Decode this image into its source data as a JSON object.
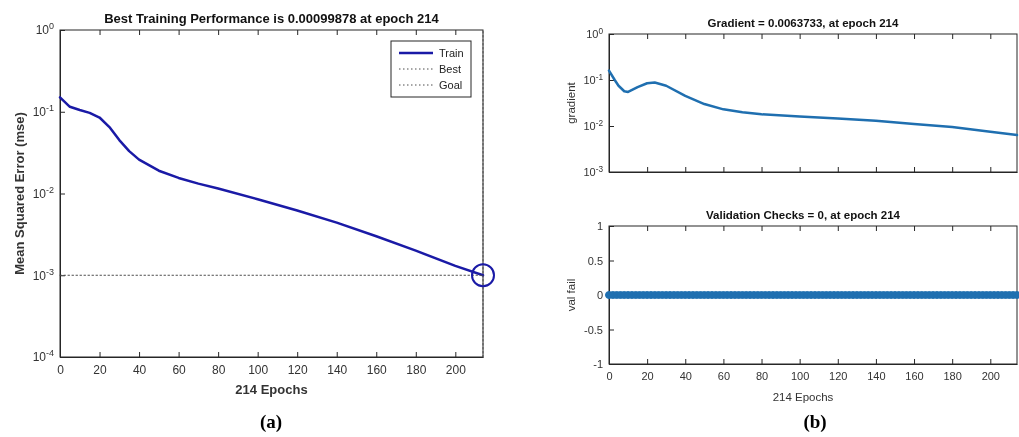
{
  "chart_data": [
    {
      "type": "line",
      "title": "Best Training Performance is 0.00099878 at epoch 214",
      "xlabel": "214 Epochs",
      "ylabel": "Mean Squared Error  (mse)",
      "log": "y",
      "xlim": [
        0,
        214
      ],
      "ylim": [
        0.0001,
        1
      ],
      "xticks": [
        0,
        20,
        40,
        60,
        80,
        100,
        120,
        140,
        160,
        180,
        200
      ],
      "yticks": [
        {
          "value": 0.0001,
          "label": "10$^{-4}$"
        },
        {
          "value": 0.001,
          "label": "10$^{-3}$"
        },
        {
          "value": 0.01,
          "label": "10$^{-2}$"
        },
        {
          "value": 0.1,
          "label": "10$^{-1}$"
        },
        {
          "value": 1,
          "label": "10$^{0}$"
        }
      ],
      "legend": "top right",
      "grid": false,
      "annotations": [
        "(a)"
      ],
      "series": [
        {
          "name": "Train",
          "color": "#1a1aa6",
          "line_style": "solid",
          "x": [
            0,
            5,
            10,
            15,
            20,
            25,
            30,
            35,
            40,
            50,
            60,
            70,
            80,
            100,
            120,
            140,
            160,
            180,
            200,
            214
          ],
          "values": [
            0.15,
            0.115,
            0.105,
            0.097,
            0.085,
            0.065,
            0.045,
            0.033,
            0.026,
            0.019,
            0.0155,
            0.0132,
            0.0115,
            0.0085,
            0.0062,
            0.0044,
            0.003,
            0.002,
            0.0013,
            0.00099878
          ]
        },
        {
          "name": "Best",
          "color": "#4d4d4d",
          "line_style": "dotted",
          "x": [
            214,
            214
          ],
          "values": [
            0.0001,
            1
          ]
        },
        {
          "name": "Goal",
          "color": "#4d4d4d",
          "line_style": "dotted",
          "x": [
            0,
            214
          ],
          "values": [
            0.001,
            0.001
          ]
        },
        {
          "type": "scatter",
          "color": "#1a1aa6",
          "marker": "circle",
          "x": [
            214
          ],
          "values": [
            0.00099878
          ]
        }
      ]
    },
    {
      "type": "line",
      "title": "Gradient = 0.0063733, at epoch 214",
      "ylabel": "gradient",
      "log": "y",
      "xlim": [
        0,
        214
      ],
      "ylim": [
        0.001,
        1
      ],
      "xticks": [
        0,
        20,
        40,
        60,
        80,
        100,
        120,
        140,
        160,
        180,
        200
      ],
      "yticks": [
        {
          "value": 0.001,
          "label": "10$^{-3}$"
        },
        {
          "value": 0.01,
          "label": "10$^{-2}$"
        },
        {
          "value": 0.1,
          "label": "10$^{-1}$"
        },
        {
          "value": 1,
          "label": "10$^{0}$"
        }
      ],
      "tick_labels": "y",
      "grid": false,
      "series": [
        {
          "color": "#1f6fb0",
          "line_style": "solid",
          "x": [
            0,
            3,
            5,
            8,
            10,
            15,
            20,
            24,
            30,
            40,
            50,
            60,
            70,
            80,
            100,
            120,
            140,
            160,
            180,
            200,
            214
          ],
          "values": [
            0.16,
            0.1,
            0.075,
            0.057,
            0.055,
            0.07,
            0.085,
            0.088,
            0.075,
            0.045,
            0.03,
            0.023,
            0.02,
            0.018,
            0.016,
            0.0145,
            0.013,
            0.011,
            0.0095,
            0.0075,
            0.0063733
          ]
        }
      ]
    },
    {
      "type": "scatter",
      "title": "Validation Checks = 0, at epoch 214",
      "xlabel": "214 Epochs",
      "ylabel": "val fail",
      "xlim": [
        0,
        214
      ],
      "ylim": [
        -1,
        1
      ],
      "xticks": [
        0,
        20,
        40,
        60,
        80,
        100,
        120,
        140,
        160,
        180,
        200
      ],
      "yticks": [
        -1,
        -0.5,
        0,
        0.5,
        1
      ],
      "grid": false,
      "annotations": [
        "(b)"
      ],
      "series": [
        {
          "color": "#1f6fb0",
          "marker": "circle",
          "x": [
            0,
            2,
            4,
            6,
            8,
            10,
            12,
            14,
            16,
            18,
            20,
            22,
            24,
            26,
            28,
            30,
            32,
            34,
            36,
            38,
            40,
            42,
            44,
            46,
            48,
            50,
            52,
            54,
            56,
            58,
            60,
            62,
            64,
            66,
            68,
            70,
            72,
            74,
            76,
            78,
            80,
            82,
            84,
            86,
            88,
            90,
            92,
            94,
            96,
            98,
            100,
            102,
            104,
            106,
            108,
            110,
            112,
            114,
            116,
            118,
            120,
            122,
            124,
            126,
            128,
            130,
            132,
            134,
            136,
            138,
            140,
            142,
            144,
            146,
            148,
            150,
            152,
            154,
            156,
            158,
            160,
            162,
            164,
            166,
            168,
            170,
            172,
            174,
            176,
            178,
            180,
            182,
            184,
            186,
            188,
            190,
            192,
            194,
            196,
            198,
            200,
            202,
            204,
            206,
            208,
            210,
            212,
            214
          ],
          "values": [
            0,
            0,
            0,
            0,
            0,
            0,
            0,
            0,
            0,
            0,
            0,
            0,
            0,
            0,
            0,
            0,
            0,
            0,
            0,
            0,
            0,
            0,
            0,
            0,
            0,
            0,
            0,
            0,
            0,
            0,
            0,
            0,
            0,
            0,
            0,
            0,
            0,
            0,
            0,
            0,
            0,
            0,
            0,
            0,
            0,
            0,
            0,
            0,
            0,
            0,
            0,
            0,
            0,
            0,
            0,
            0,
            0,
            0,
            0,
            0,
            0,
            0,
            0,
            0,
            0,
            0,
            0,
            0,
            0,
            0,
            0,
            0,
            0,
            0,
            0,
            0,
            0,
            0,
            0,
            0,
            0,
            0,
            0,
            0,
            0,
            0,
            0,
            0,
            0,
            0,
            0,
            0,
            0,
            0,
            0,
            0,
            0,
            0,
            0,
            0,
            0,
            0,
            0,
            0,
            0,
            0,
            0,
            0
          ]
        }
      ]
    }
  ]
}
